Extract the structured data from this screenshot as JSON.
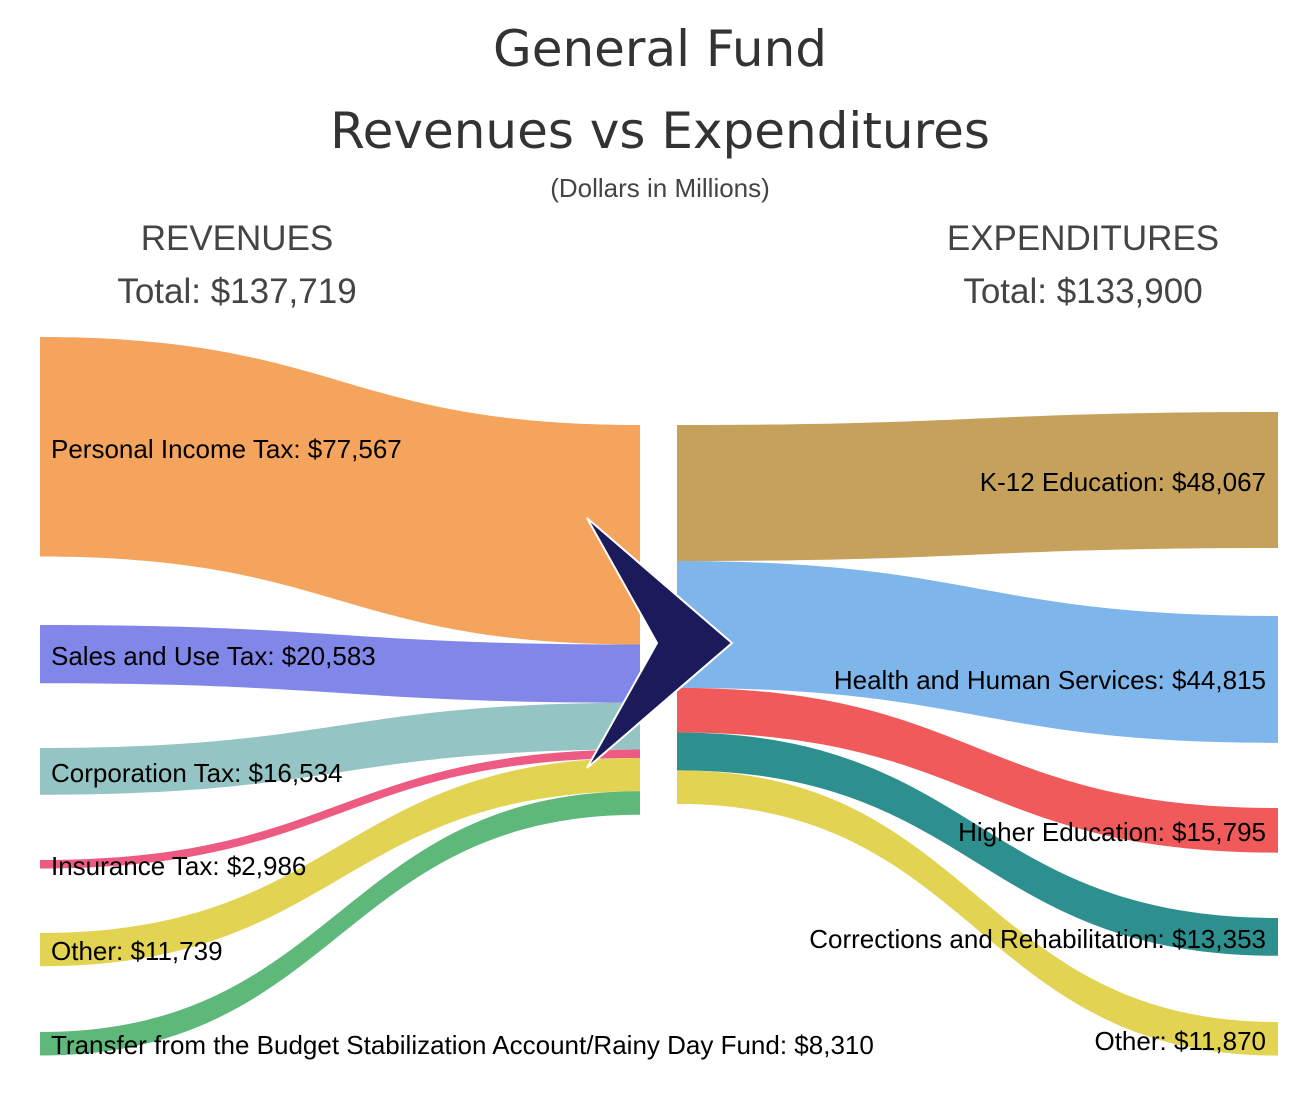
{
  "title_line1": "General Fund",
  "title_line2": "Revenues vs Expenditures",
  "subtitle": "(Dollars in Millions)",
  "revenues": {
    "header": "REVENUES",
    "total_label": "Total: $137,719",
    "items": [
      {
        "label": "Personal Income Tax: $77,567",
        "value": 77567,
        "color": "#F5A45D"
      },
      {
        "label": "Sales and Use Tax: $20,583",
        "value": 20583,
        "color": "#8087E8"
      },
      {
        "label": "Corporation Tax: $16,534",
        "value": 16534,
        "color": "#95C4C5"
      },
      {
        "label": "Insurance Tax: $2,986",
        "value": 2986,
        "color": "#EE5B82"
      },
      {
        "label": "Other: $11,739",
        "value": 11739,
        "color": "#E3D353"
      },
      {
        "label": "Transfer from the Budget Stabilization Account/Rainy Day Fund: $8,310",
        "value": 8310,
        "color": "#5DB87A"
      }
    ]
  },
  "expenditures": {
    "header": "EXPENDITURES",
    "total_label": "Total: $133,900",
    "items": [
      {
        "label": "K-12 Education: $48,067",
        "value": 48067,
        "color": "#C6A15B"
      },
      {
        "label": "Health and Human Services: $44,815",
        "value": 44815,
        "color": "#7EB5EA"
      },
      {
        "label": "Higher Education: $15,795",
        "value": 15795,
        "color": "#F05A5A"
      },
      {
        "label": "Corrections and Rehabilitation: $13,353",
        "value": 13353,
        "color": "#2E8F8F"
      },
      {
        "label": "Other: $11,870",
        "value": 11870,
        "color": "#E3D353"
      }
    ]
  },
  "arrow_color": "#1B1B5C"
}
